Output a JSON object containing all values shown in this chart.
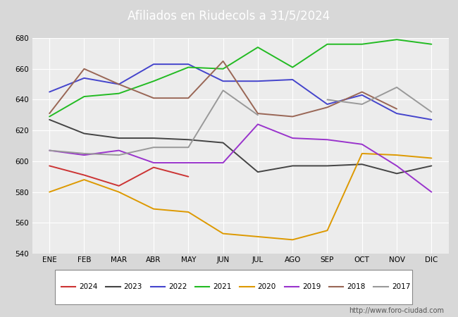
{
  "title": "Afiliados en Riudecols a 31/5/2024",
  "header_bg": "#5b9bd5",
  "months": [
    "ENE",
    "FEB",
    "MAR",
    "ABR",
    "MAY",
    "JUN",
    "JUL",
    "AGO",
    "SEP",
    "OCT",
    "NOV",
    "DIC"
  ],
  "ylim": [
    540,
    680
  ],
  "yticks": [
    540,
    560,
    580,
    600,
    620,
    640,
    660,
    680
  ],
  "series": [
    {
      "year": "2024",
      "color": "#cc3333",
      "data": [
        597,
        591,
        584,
        596,
        590,
        null,
        null,
        null,
        null,
        null,
        null,
        null
      ]
    },
    {
      "year": "2023",
      "color": "#444444",
      "data": [
        627,
        618,
        615,
        615,
        614,
        612,
        593,
        597,
        597,
        598,
        592,
        597
      ]
    },
    {
      "year": "2022",
      "color": "#4444cc",
      "data": [
        645,
        654,
        650,
        663,
        663,
        652,
        652,
        653,
        637,
        643,
        631,
        627
      ]
    },
    {
      "year": "2021",
      "color": "#22bb22",
      "data": [
        629,
        642,
        644,
        652,
        661,
        660,
        674,
        661,
        676,
        676,
        679,
        676
      ]
    },
    {
      "year": "2020",
      "color": "#dd9900",
      "data": [
        580,
        588,
        580,
        569,
        567,
        553,
        551,
        549,
        555,
        605,
        604,
        602
      ]
    },
    {
      "year": "2019",
      "color": "#9933cc",
      "data": [
        607,
        604,
        607,
        599,
        599,
        599,
        624,
        615,
        614,
        611,
        597,
        580
      ]
    },
    {
      "year": "2018",
      "color": "#996655",
      "data": [
        631,
        660,
        650,
        641,
        641,
        665,
        631,
        629,
        635,
        645,
        634,
        null
      ]
    },
    {
      "year": "2017",
      "color": "#999999",
      "data": [
        607,
        605,
        604,
        609,
        609,
        646,
        630,
        null,
        640,
        637,
        648,
        632
      ]
    }
  ],
  "footer_url": "http://www.foro-ciudad.com",
  "background_color": "#d8d8d8",
  "plot_bg": "#ececec",
  "grid_color": "#ffffff"
}
